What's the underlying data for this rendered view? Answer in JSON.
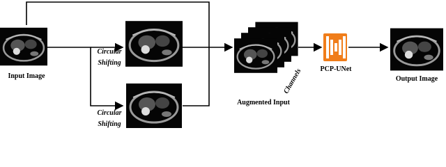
{
  "nodes": [
    {
      "label": "Input Image"
    },
    {
      "label_lines": [
        "Circular",
        "Shifting"
      ]
    },
    {
      "label_lines": [
        "Circular",
        "Shifting"
      ]
    },
    {
      "label": "Augmented Input",
      "axis_label": "Channels"
    },
    {
      "label": "PCP-UNet"
    },
    {
      "label": "Output Image"
    }
  ]
}
